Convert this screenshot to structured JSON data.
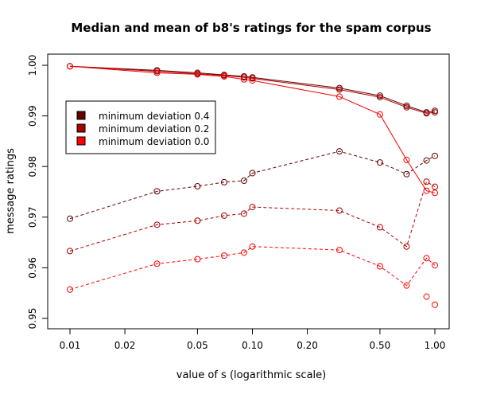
{
  "chart_data": {
    "type": "line",
    "title": "Median and mean of b8's ratings for the spam corpus",
    "xlabel": "value of s (logarithmic scale)",
    "ylabel": "message ratings",
    "x_scale": "log",
    "xlim": [
      0.01,
      1.0
    ],
    "ylim": [
      0.95,
      1.0
    ],
    "x_ticks": [
      0.01,
      0.02,
      0.05,
      0.1,
      0.2,
      0.5,
      1.0
    ],
    "x_tick_labels": [
      "0.01",
      "0.02",
      "0.05",
      "0.10",
      "0.20",
      "0.50",
      "1.00"
    ],
    "y_ticks": [
      0.95,
      0.96,
      0.97,
      0.98,
      0.99,
      1.0
    ],
    "y_tick_labels": [
      "0.95",
      "0.96",
      "0.97",
      "0.98",
      "0.99",
      "1.00"
    ],
    "grid": false,
    "legend_position": "left-upper",
    "legend": [
      {
        "label": "minimum deviation 0.4",
        "color": "#660000"
      },
      {
        "label": "minimum deviation 0.2",
        "color": "#AA0000"
      },
      {
        "label": "minimum deviation 0.0",
        "color": "#FF0000"
      }
    ],
    "x": [
      0.01,
      0.03,
      0.05,
      0.07,
      0.09,
      0.1,
      0.3,
      0.5,
      0.7,
      0.9,
      1.0
    ],
    "series": [
      {
        "statistic": "median",
        "deviation": "0.4",
        "color": "#660000",
        "line": "solid",
        "values": [
          0.9998,
          0.999,
          0.9985,
          0.9981,
          0.9978,
          0.9976,
          0.9955,
          0.994,
          0.992,
          0.9907,
          0.991
        ]
      },
      {
        "statistic": "median",
        "deviation": "0.2",
        "color": "#AA0000",
        "line": "solid",
        "values": [
          0.9998,
          0.9988,
          0.9983,
          0.998,
          0.9976,
          0.9974,
          0.9952,
          0.9937,
          0.9917,
          0.9905,
          0.9907
        ]
      },
      {
        "statistic": "median",
        "deviation": "0.0",
        "color": "#FF0000",
        "line": "solid",
        "values": [
          0.9998,
          0.9985,
          0.9982,
          0.9978,
          0.9972,
          0.997,
          0.9938,
          0.9903,
          0.9813,
          0.9752,
          0.9748
        ]
      },
      {
        "statistic": "mean",
        "deviation": "0.4",
        "color": "#660000",
        "line": "dashed",
        "values": [
          0.9697,
          0.9751,
          0.9761,
          0.9769,
          0.9772,
          0.9787,
          0.983,
          0.9808,
          0.9785,
          0.9812,
          0.9821
        ]
      },
      {
        "statistic": "mean",
        "deviation": "0.2",
        "color": "#AA0000",
        "line": "dashed",
        "values": [
          0.9633,
          0.9685,
          0.9693,
          0.9703,
          0.9707,
          0.972,
          0.9713,
          0.968,
          0.9642,
          0.977,
          0.976
        ]
      },
      {
        "statistic": "mean",
        "deviation": "0.0",
        "color": "#FF0000",
        "line": "dashed",
        "values": [
          0.9557,
          0.9608,
          0.9617,
          0.9624,
          0.963,
          0.9642,
          0.9635,
          0.9603,
          0.9565,
          0.9619,
          0.9605
        ]
      }
    ],
    "extra_points": [
      {
        "x": 0.9,
        "y": 0.9543,
        "color": "#FF0000"
      },
      {
        "x": 1.0,
        "y": 0.9527,
        "color": "#FF0000"
      }
    ]
  }
}
